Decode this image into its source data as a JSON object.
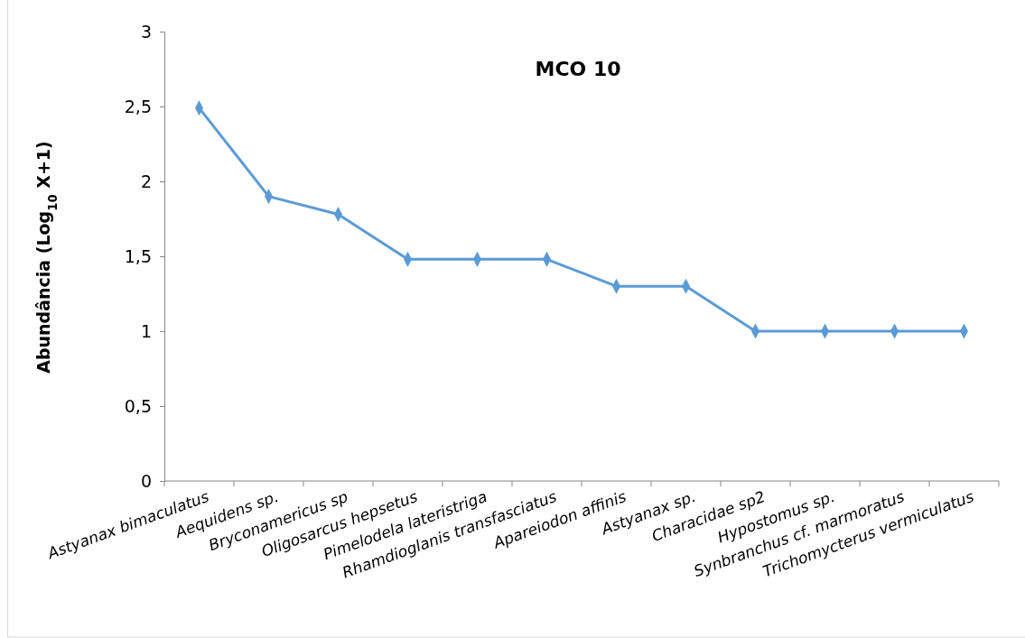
{
  "chart_data": {
    "type": "line",
    "title": "MCO 10",
    "ylabel": "Abundância (Log$_{10}$ X+1)",
    "categories": [
      "Astyanax bimaculatus",
      "Aequidens sp.",
      "Bryconamericus sp",
      "Oligosarcus hepsetus",
      "Pimelodela lateristriga",
      "Rhamdioglanis transfasciatus",
      "Apareiodon affinis",
      "Astyanax sp.",
      "Characidae sp2",
      "Hypostomus sp.",
      "Synbranchus cf. marmoratus",
      "Trichomycterus vermiculatus"
    ],
    "series": [
      {
        "color": "#5b9bd5",
        "values": [
          2.49,
          1.9,
          1.78,
          1.48,
          1.48,
          1.48,
          1.3,
          1.3,
          1.0,
          1.0,
          1.0,
          1.0
        ]
      }
    ],
    "ylim": [
      0,
      3
    ],
    "yticks": [
      0,
      {
        "value": 0.5,
        "label": "0,5"
      },
      1,
      {
        "value": 1.5,
        "label": "1,5"
      },
      2,
      {
        "value": 2.5,
        "label": "2,5"
      },
      3
    ],
    "marker": "diamond",
    "line_style": "solid",
    "grid": false
  }
}
